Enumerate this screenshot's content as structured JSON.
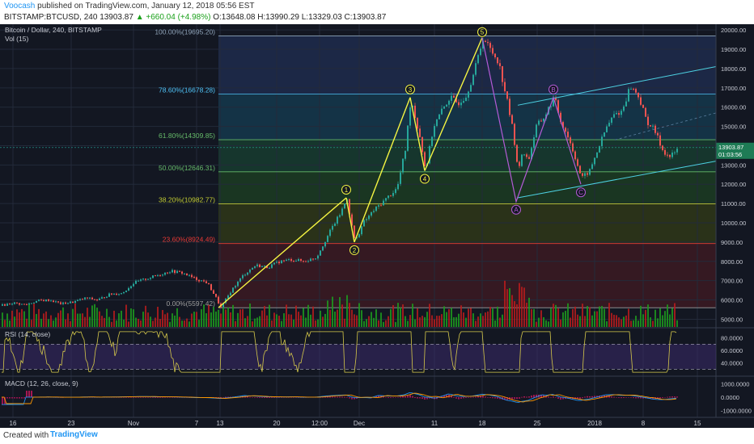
{
  "header": {
    "author": "Voocash",
    "published_text": "published on TradingView.com, January 12, 2018 05:56 EST",
    "symbol": "BITSTAMP:BTCUSD, 240",
    "last": "13903.87",
    "change": "▲ +660.04 (+4.98%)",
    "ohlc": "O:13648.08 H:13990.29 L:13329.03 C:13903.87"
  },
  "legend": {
    "title": "Bitcoin / Dollar, 240, BITSTAMP",
    "vol": "Vol (15)",
    "rsi": "RSI (14, close)",
    "macd": "MACD (12, 26, close, 9)"
  },
  "price_tags": {
    "last": "13903.87",
    "timer": "01:03:56"
  },
  "footer": {
    "created": "Created with",
    "brand": "TradingView"
  },
  "colors": {
    "background": "#131722",
    "up": "#26a69a",
    "down": "#ef5350",
    "vol_up": "#1d9a1d",
    "vol_down": "#b71c1c",
    "wave": "#f5f542",
    "abc": "#b45bd6",
    "channel": "#4dd0e1",
    "rsi_line": "#d6c94a"
  },
  "chart_data": {
    "type": "candlestick",
    "x_ticks": [
      "16",
      "23",
      "Nov",
      "7",
      "13",
      "20",
      "12:00",
      "Dec",
      "11",
      "18",
      "25",
      "2018",
      "8",
      "15"
    ],
    "y_ticks": [
      "20000.00",
      "19000.00",
      "18000.00",
      "17000.00",
      "16000.00",
      "15000.00",
      "14000.00",
      "13000.00",
      "12000.00",
      "11000.00",
      "10000.00",
      "9000.00",
      "8000.00",
      "7000.00",
      "6000.00",
      "5000.00"
    ],
    "ylim": [
      4600,
      20300
    ],
    "fib_levels": [
      {
        "label": "100.00%(19695.20)",
        "value": 19695.2,
        "color": "#8fa3b8"
      },
      {
        "label": "78.60%(16678.28)",
        "value": 16678.28,
        "color": "#4fc3f7"
      },
      {
        "label": "61.80%(14309.85)",
        "value": 14309.85,
        "color": "#66bb6a"
      },
      {
        "label": "50.00%(12646.31)",
        "value": 12646.31,
        "color": "#66bb6a"
      },
      {
        "label": "38.20%(10982.77)",
        "value": 10982.77,
        "color": "#c0ca33"
      },
      {
        "label": "23.60%(8924.49)",
        "value": 8924.49,
        "color": "#e53935"
      },
      {
        "label": "0.00%(5597.42)",
        "value": 5597.42,
        "color": "#9e9e9e"
      }
    ],
    "price_path": [
      [
        0,
        5700
      ],
      [
        15,
        5850
      ],
      [
        30,
        5750
      ],
      [
        45,
        5950
      ],
      [
        60,
        6000
      ],
      [
        75,
        5800
      ],
      [
        90,
        5900
      ],
      [
        105,
        6100
      ],
      [
        120,
        6000
      ],
      [
        135,
        6300
      ],
      [
        150,
        6350
      ],
      [
        165,
        6900
      ],
      [
        180,
        7100
      ],
      [
        195,
        7300
      ],
      [
        210,
        7500
      ],
      [
        225,
        7400
      ],
      [
        240,
        7100
      ],
      [
        255,
        6900
      ],
      [
        265,
        6200
      ],
      [
        272,
        5600
      ],
      [
        285,
        6500
      ],
      [
        300,
        7300
      ],
      [
        315,
        7800
      ],
      [
        330,
        7700
      ],
      [
        345,
        8000
      ],
      [
        360,
        8100
      ],
      [
        375,
        8000
      ],
      [
        390,
        8200
      ],
      [
        400,
        9000
      ],
      [
        410,
        9800
      ],
      [
        420,
        10500
      ],
      [
        428,
        11300
      ],
      [
        433,
        10000
      ],
      [
        438,
        9000
      ],
      [
        448,
        10000
      ],
      [
        460,
        10600
      ],
      [
        475,
        11200
      ],
      [
        490,
        11800
      ],
      [
        500,
        13800
      ],
      [
        507,
        16500
      ],
      [
        512,
        15500
      ],
      [
        518,
        14500
      ],
      [
        525,
        12700
      ],
      [
        535,
        15000
      ],
      [
        545,
        15800
      ],
      [
        555,
        16500
      ],
      [
        565,
        16200
      ],
      [
        575,
        16600
      ],
      [
        585,
        17800
      ],
      [
        596,
        19600
      ],
      [
        605,
        19000
      ],
      [
        615,
        18400
      ],
      [
        625,
        16500
      ],
      [
        633,
        14800
      ],
      [
        640,
        12600
      ],
      [
        645,
        13800
      ],
      [
        652,
        13200
      ],
      [
        662,
        15000
      ],
      [
        672,
        15500
      ],
      [
        684,
        16500
      ],
      [
        692,
        15300
      ],
      [
        700,
        14600
      ],
      [
        710,
        13400
      ],
      [
        718,
        12300
      ],
      [
        728,
        12700
      ],
      [
        738,
        13800
      ],
      [
        748,
        14900
      ],
      [
        758,
        15600
      ],
      [
        768,
        15800
      ],
      [
        778,
        17100
      ],
      [
        788,
        16600
      ],
      [
        798,
        15300
      ],
      [
        808,
        14800
      ],
      [
        818,
        13800
      ],
      [
        826,
        13400
      ],
      [
        832,
        13600
      ],
      [
        838,
        13903
      ]
    ],
    "wave_points": [
      {
        "label": "1",
        "x": 428,
        "y": 11300
      },
      {
        "label": "2",
        "x": 438,
        "y": 9000
      },
      {
        "label": "3",
        "x": 507,
        "y": 16500
      },
      {
        "label": "4",
        "x": 525,
        "y": 12700
      },
      {
        "label": "5",
        "x": 596,
        "y": 19600
      }
    ],
    "wave_start": {
      "x": 270,
      "y": 5600
    },
    "abc_points": [
      {
        "label": "A",
        "x": 638,
        "y": 11100
      },
      {
        "label": "B",
        "x": 684,
        "y": 16500
      },
      {
        "label": "C",
        "x": 718,
        "y": 12000
      }
    ],
    "rsi_ticks": [
      "80.0000",
      "60.0000",
      "40.0000"
    ],
    "macd_ticks": [
      "1000.0000",
      "0.0000",
      "-1000.0000"
    ]
  }
}
